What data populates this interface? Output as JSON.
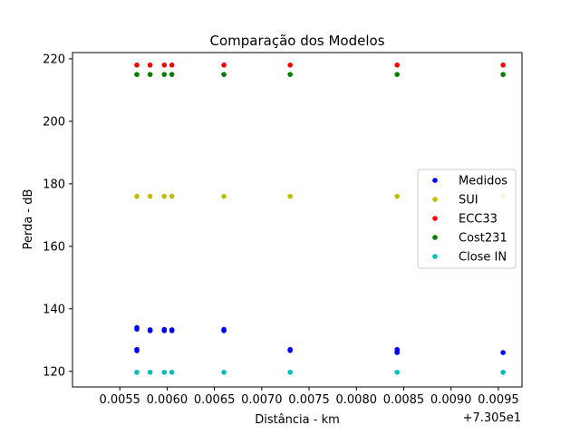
{
  "chart_data": {
    "type": "scatter",
    "title": "Comparação dos Modelos",
    "xlabel": "Distância - km",
    "ylabel": "Perda - dB",
    "x_offset_text": "+7.305e1",
    "xlim": [
      0.005,
      0.00975
    ],
    "ylim": [
      115,
      222
    ],
    "x_ticks": [
      0.0055,
      0.006,
      0.0065,
      0.007,
      0.0075,
      0.008,
      0.0085,
      0.009,
      0.0095
    ],
    "x_tick_labels": [
      "0.0055",
      "0.0060",
      "0.0065",
      "0.0070",
      "0.0075",
      "0.0080",
      "0.0085",
      "0.0090",
      "0.0095"
    ],
    "y_ticks": [
      120,
      140,
      160,
      180,
      200,
      220
    ],
    "y_tick_labels": [
      "120",
      "140",
      "160",
      "180",
      "200",
      "220"
    ],
    "grid": false,
    "legend_position": "center-right",
    "series": [
      {
        "name": "Medidos",
        "color": "#0000ff",
        "points": [
          [
            0.00568,
            133.5
          ],
          [
            0.00568,
            134.0
          ],
          [
            0.00568,
            127.0
          ],
          [
            0.00568,
            126.6
          ],
          [
            0.00582,
            133.0
          ],
          [
            0.00582,
            133.3
          ],
          [
            0.00597,
            133.0
          ],
          [
            0.00597,
            133.4
          ],
          [
            0.00605,
            133.0
          ],
          [
            0.00605,
            133.3
          ],
          [
            0.0066,
            133.0
          ],
          [
            0.0066,
            133.4
          ],
          [
            0.0073,
            127.0
          ],
          [
            0.0073,
            126.7
          ],
          [
            0.00843,
            127.0
          ],
          [
            0.00843,
            126.5
          ],
          [
            0.00843,
            126.0
          ],
          [
            0.00955,
            126.0
          ]
        ]
      },
      {
        "name": "SUI",
        "color": "#bfbf00",
        "points": [
          [
            0.00568,
            176
          ],
          [
            0.00582,
            176
          ],
          [
            0.00597,
            176
          ],
          [
            0.00605,
            176
          ],
          [
            0.0066,
            176
          ],
          [
            0.0073,
            176
          ],
          [
            0.00843,
            176
          ],
          [
            0.00955,
            176
          ]
        ]
      },
      {
        "name": "ECC33",
        "color": "#ff0000",
        "points": [
          [
            0.00568,
            218
          ],
          [
            0.00582,
            218
          ],
          [
            0.00597,
            218
          ],
          [
            0.00605,
            218
          ],
          [
            0.0066,
            218
          ],
          [
            0.0073,
            218
          ],
          [
            0.00843,
            218
          ],
          [
            0.00955,
            218
          ]
        ]
      },
      {
        "name": "Cost231",
        "color": "#008000",
        "points": [
          [
            0.00568,
            215
          ],
          [
            0.00582,
            215
          ],
          [
            0.00597,
            215
          ],
          [
            0.00605,
            215
          ],
          [
            0.0066,
            215
          ],
          [
            0.0073,
            215
          ],
          [
            0.00843,
            215
          ],
          [
            0.00955,
            215
          ]
        ]
      },
      {
        "name": "Close IN",
        "color": "#00bfbf",
        "points": [
          [
            0.00568,
            119.7
          ],
          [
            0.00582,
            119.7
          ],
          [
            0.00597,
            119.7
          ],
          [
            0.00605,
            119.7
          ],
          [
            0.0066,
            119.7
          ],
          [
            0.0073,
            119.7
          ],
          [
            0.00843,
            119.7
          ],
          [
            0.00955,
            119.7
          ]
        ]
      }
    ]
  }
}
